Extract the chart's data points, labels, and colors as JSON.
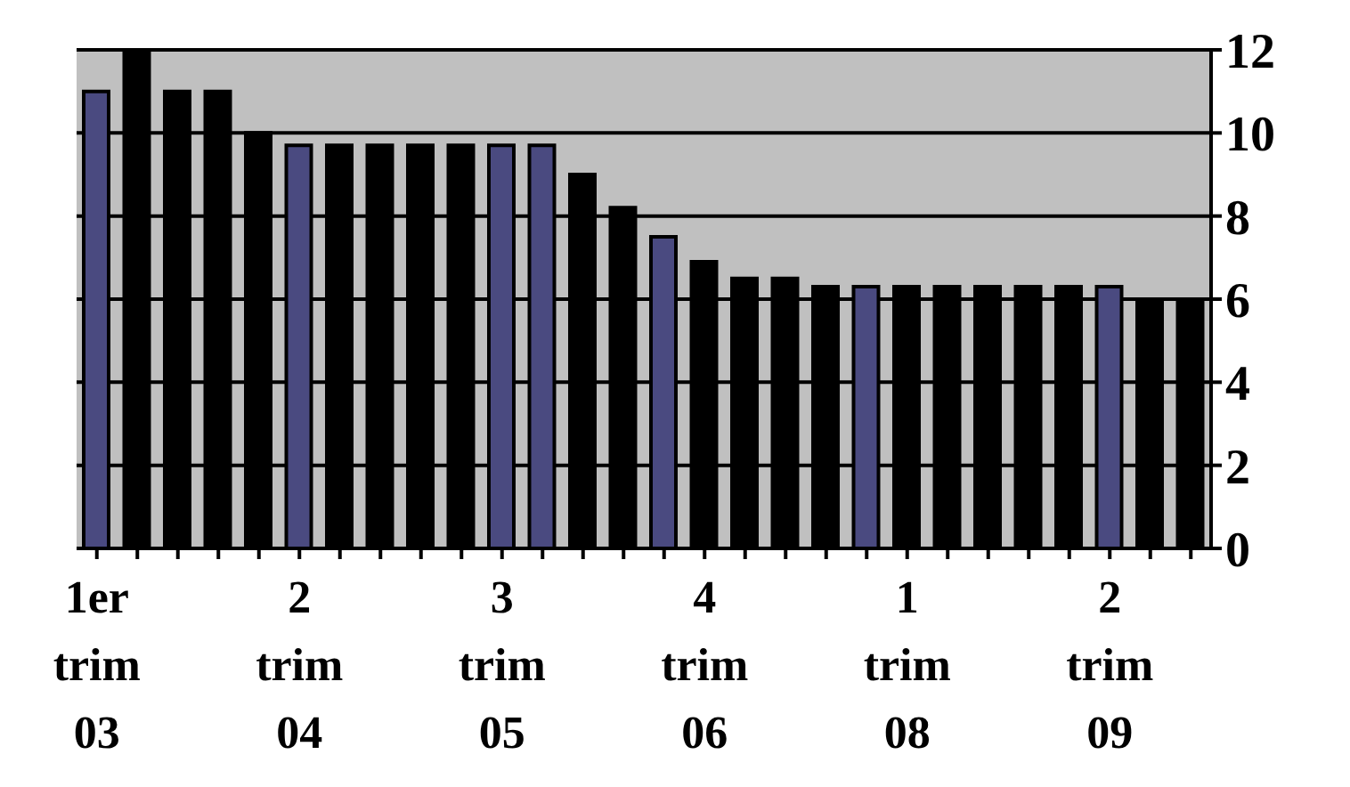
{
  "chart_data": {
    "type": "bar",
    "categories": [
      "1er trim 03",
      null,
      null,
      null,
      null,
      "2 trim 04",
      null,
      null,
      null,
      null,
      "3 trim 05",
      null,
      null,
      null,
      null,
      "4 trim 06",
      null,
      null,
      null,
      null,
      "1 trim 08",
      null,
      null,
      null,
      null,
      "2 trim 09",
      null,
      null
    ],
    "values": [
      11,
      12,
      11,
      11,
      10,
      9.7,
      9.7,
      9.7,
      9.7,
      9.7,
      9.7,
      9.7,
      9,
      8.2,
      7.5,
      6.9,
      6.5,
      6.5,
      6.3,
      6.3,
      6.3,
      6.3,
      6.3,
      6.3,
      6.3,
      6.3,
      6,
      6
    ],
    "colors": [
      "#4a4a80",
      "#000000",
      "#000000",
      "#000000",
      "#000000",
      "#4a4a80",
      "#000000",
      "#000000",
      "#000000",
      "#000000",
      "#4a4a80",
      "#4a4a80",
      "#000000",
      "#000000",
      "#4a4a80",
      "#000000",
      "#000000",
      "#000000",
      "#000000",
      "#4a4a80",
      "#000000",
      "#000000",
      "#000000",
      "#000000",
      "#000000",
      "#4a4a80",
      "#000000",
      "#000000"
    ],
    "ylim": [
      0,
      12
    ],
    "yticks": [
      0,
      2,
      4,
      6,
      8,
      10,
      12
    ],
    "grid": "y"
  }
}
